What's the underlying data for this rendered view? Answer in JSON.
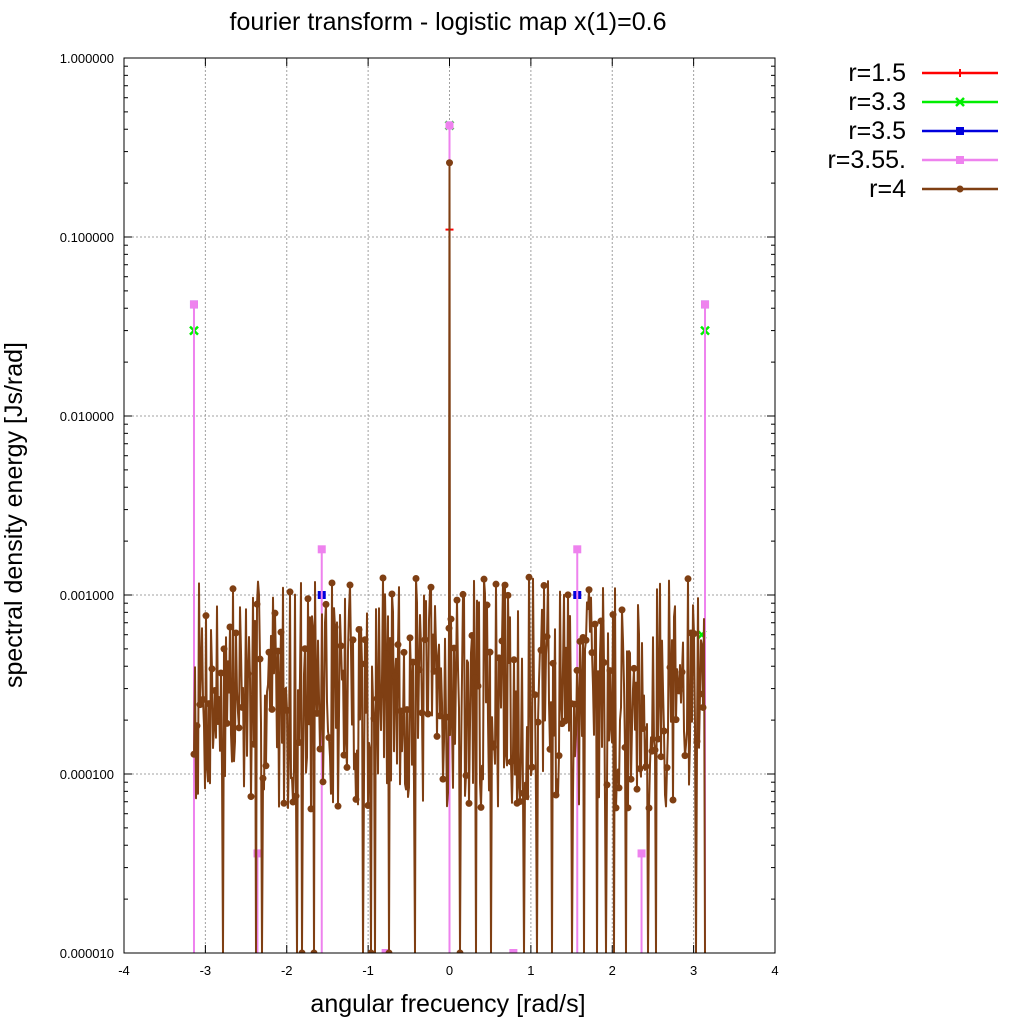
{
  "chart_data": {
    "type": "line",
    "title": "fourier transform - logistic map x(1)=0.6",
    "xlabel": "angular frecuency [rad/s]",
    "ylabel": "spectral density energy [Js/rad]",
    "xlim": [
      -4,
      4
    ],
    "ylim": [
      1e-05,
      1
    ],
    "yscale": "log",
    "grid": true,
    "legend_position": "outside-top-right",
    "x_ticks": [
      -4,
      -3,
      -2,
      -1,
      0,
      1,
      2,
      3,
      4
    ],
    "x_tick_labels": [
      "-4",
      "-3",
      "-2",
      "-1",
      "0",
      "1",
      "2",
      "3",
      "4"
    ],
    "y_ticks": [
      1e-05,
      0.0001,
      0.001,
      0.01,
      0.1,
      1
    ],
    "y_tick_labels": [
      "0.000010",
      "0.000100",
      "0.001000",
      "0.010000",
      "0.100000",
      "1.000000"
    ],
    "series": [
      {
        "name": "r=1.5",
        "color": "#ff0000",
        "marker": "plus",
        "kind": "points",
        "points": [
          [
            0,
            0.11
          ]
        ]
      },
      {
        "name": "r=3.3",
        "color": "#00ee00",
        "marker": "cross",
        "kind": "points",
        "points": [
          [
            -3.14,
            0.03
          ],
          [
            0,
            0.42
          ],
          [
            3.14,
            0.03
          ],
          [
            3.1,
            0.0006
          ]
        ]
      },
      {
        "name": "r=3.5",
        "color": "#0000dd",
        "marker": "square",
        "kind": "points",
        "points": [
          [
            -3.14,
            0.042
          ],
          [
            -1.57,
            0.001
          ],
          [
            0,
            0.42
          ],
          [
            1.57,
            0.001
          ],
          [
            3.14,
            0.042
          ]
        ]
      },
      {
        "name": "r=3.55.",
        "color": "#ee82ee",
        "marker": "square",
        "kind": "spikes",
        "points": [
          [
            -3.14,
            0.042
          ],
          [
            -2.36,
            3.6e-05
          ],
          [
            -1.57,
            0.0018
          ],
          [
            -0.785,
            1e-05
          ],
          [
            0,
            0.42
          ],
          [
            0.785,
            1e-05
          ],
          [
            1.57,
            0.0018
          ],
          [
            2.36,
            3.6e-05
          ],
          [
            3.14,
            0.042
          ]
        ]
      },
      {
        "name": "r=4",
        "color": "#7f3f13",
        "marker": "circle",
        "kind": "noise",
        "x_range": [
          -3.14,
          3.14
        ],
        "n_points": 512,
        "seed": 7,
        "center_point": [
          0,
          0.26
        ],
        "log_range": [
          -4.9,
          -2.9
        ]
      }
    ]
  }
}
